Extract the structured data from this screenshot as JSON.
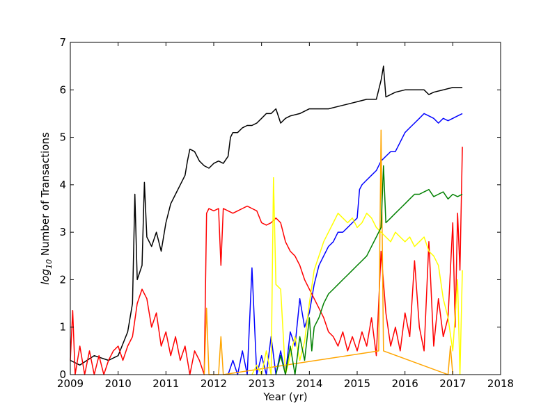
{
  "chart_data": {
    "type": "line",
    "title": "",
    "xlabel": "Year (yr)",
    "ylabel_prefix": "log",
    "ylabel_sub": "10",
    "ylabel_rest": " Number of Transactions",
    "xlim": [
      2009,
      2018
    ],
    "ylim": [
      0,
      7
    ],
    "x_ticks": [
      "2009",
      "2010",
      "2011",
      "2012",
      "2013",
      "2014",
      "2015",
      "2016",
      "2017",
      "2018"
    ],
    "y_ticks": [
      "0",
      "1",
      "2",
      "3",
      "4",
      "5",
      "6",
      "7"
    ],
    "grid": false,
    "legend": "none",
    "series": [
      {
        "color": "#000000",
        "x": [
          2009.0,
          2009.2,
          2009.5,
          2009.8,
          2010.0,
          2010.2,
          2010.3,
          2010.35,
          2010.4,
          2010.5,
          2010.55,
          2010.6,
          2010.7,
          2010.8,
          2010.9,
          2011.0,
          2011.1,
          2011.2,
          2011.3,
          2011.4,
          2011.45,
          2011.5,
          2011.6,
          2011.7,
          2011.8,
          2011.9,
          2012.0,
          2012.1,
          2012.2,
          2012.3,
          2012.35,
          2012.4,
          2012.5,
          2012.6,
          2012.7,
          2012.8,
          2012.9,
          2013.0,
          2013.1,
          2013.2,
          2013.3,
          2013.4,
          2013.5,
          2013.6,
          2013.8,
          2014.0,
          2014.2,
          2014.4,
          2014.6,
          2014.8,
          2015.0,
          2015.2,
          2015.4,
          2015.5,
          2015.55,
          2015.6,
          2015.7,
          2015.8,
          2016.0,
          2016.2,
          2016.4,
          2016.5,
          2016.6,
          2016.8,
          2017.0,
          2017.1,
          2017.2
        ],
        "y": [
          0.3,
          0.2,
          0.4,
          0.3,
          0.4,
          0.9,
          1.5,
          3.8,
          2.0,
          2.3,
          4.05,
          2.9,
          2.7,
          3.0,
          2.6,
          3.2,
          3.6,
          3.8,
          4.0,
          4.2,
          4.5,
          4.75,
          4.7,
          4.5,
          4.4,
          4.35,
          4.45,
          4.5,
          4.45,
          4.6,
          5.0,
          5.1,
          5.1,
          5.2,
          5.25,
          5.25,
          5.3,
          5.4,
          5.5,
          5.5,
          5.6,
          5.3,
          5.4,
          5.45,
          5.5,
          5.6,
          5.6,
          5.6,
          5.65,
          5.7,
          5.75,
          5.8,
          5.8,
          6.2,
          6.5,
          5.85,
          5.9,
          5.95,
          6.0,
          6.0,
          6.0,
          5.9,
          5.95,
          6.0,
          6.05,
          6.05,
          6.05
        ]
      },
      {
        "color": "#0000ff",
        "x": [
          2012.3,
          2012.4,
          2012.5,
          2012.6,
          2012.7,
          2012.8,
          2012.9,
          2013.0,
          2013.1,
          2013.2,
          2013.3,
          2013.4,
          2013.5,
          2013.6,
          2013.7,
          2013.8,
          2013.9,
          2014.0,
          2014.1,
          2014.2,
          2014.3,
          2014.4,
          2014.5,
          2014.6,
          2014.7,
          2014.8,
          2014.9,
          2015.0,
          2015.05,
          2015.1,
          2015.2,
          2015.3,
          2015.4,
          2015.5,
          2015.6,
          2015.7,
          2015.8,
          2015.9,
          2016.0,
          2016.1,
          2016.2,
          2016.3,
          2016.4,
          2016.5,
          2016.6,
          2016.7,
          2016.8,
          2016.9,
          2017.0,
          2017.1,
          2017.2
        ],
        "y": [
          0.0,
          0.3,
          0.0,
          0.5,
          0.0,
          2.25,
          0.0,
          0.4,
          0.0,
          0.8,
          0.0,
          0.5,
          0.0,
          0.9,
          0.6,
          1.6,
          1.0,
          1.3,
          1.9,
          2.3,
          2.5,
          2.7,
          2.8,
          3.0,
          3.0,
          3.1,
          3.2,
          3.3,
          3.9,
          4.0,
          4.1,
          4.2,
          4.3,
          4.5,
          4.6,
          4.7,
          4.7,
          4.9,
          5.1,
          5.2,
          5.3,
          5.4,
          5.5,
          5.45,
          5.4,
          5.3,
          5.4,
          5.35,
          5.4,
          5.45,
          5.5
        ]
      },
      {
        "color": "#ff0000",
        "x": [
          2009.0,
          2009.05,
          2009.1,
          2009.2,
          2009.3,
          2009.4,
          2009.5,
          2009.6,
          2009.7,
          2009.8,
          2009.9,
          2010.0,
          2010.1,
          2010.2,
          2010.3,
          2010.4,
          2010.5,
          2010.6,
          2010.7,
          2010.8,
          2010.9,
          2011.0,
          2011.1,
          2011.2,
          2011.3,
          2011.4,
          2011.5,
          2011.6,
          2011.7,
          2011.8,
          2011.85,
          2011.9,
          2012.0,
          2012.1,
          2012.15,
          2012.2,
          2012.3,
          2012.4,
          2012.5,
          2012.6,
          2012.7,
          2012.8,
          2012.9,
          2013.0,
          2013.1,
          2013.2,
          2013.3,
          2013.4,
          2013.5,
          2013.6,
          2013.7,
          2013.8,
          2013.9,
          2014.0,
          2014.1,
          2014.2,
          2014.3,
          2014.4,
          2014.5,
          2014.6,
          2014.7,
          2014.8,
          2014.9,
          2015.0,
          2015.1,
          2015.2,
          2015.3,
          2015.4,
          2015.5,
          2015.6,
          2015.7,
          2015.8,
          2015.9,
          2016.0,
          2016.1,
          2016.2,
          2016.3,
          2016.4,
          2016.5,
          2016.6,
          2016.7,
          2016.8,
          2016.9,
          2017.0,
          2017.05,
          2017.1,
          2017.15,
          2017.2
        ],
        "y": [
          0.3,
          1.35,
          0.0,
          0.6,
          0.0,
          0.5,
          0.0,
          0.4,
          0.0,
          0.3,
          0.5,
          0.6,
          0.3,
          0.6,
          0.8,
          1.5,
          1.8,
          1.6,
          1.0,
          1.3,
          0.6,
          0.9,
          0.4,
          0.8,
          0.3,
          0.6,
          0.0,
          0.5,
          0.3,
          0.0,
          3.4,
          3.5,
          3.45,
          3.5,
          2.3,
          3.5,
          3.45,
          3.4,
          3.45,
          3.5,
          3.55,
          3.5,
          3.45,
          3.2,
          3.15,
          3.2,
          3.3,
          3.2,
          2.8,
          2.6,
          2.5,
          2.3,
          2.0,
          1.8,
          1.6,
          1.4,
          1.2,
          0.9,
          0.8,
          0.6,
          0.9,
          0.5,
          0.8,
          0.5,
          0.9,
          0.6,
          1.2,
          0.4,
          2.6,
          1.3,
          0.6,
          1.0,
          0.5,
          1.3,
          0.8,
          2.4,
          1.0,
          0.5,
          2.8,
          0.6,
          1.6,
          0.8,
          1.2,
          3.2,
          1.0,
          3.4,
          2.2,
          4.8
        ]
      },
      {
        "color": "#ffa500",
        "x": [
          2011.8,
          2011.85,
          2011.9,
          2012.1,
          2012.15,
          2012.2,
          2015.45,
          2015.5,
          2015.55,
          2016.9,
          2016.95,
          2017.0
        ],
        "y": [
          0.0,
          1.4,
          0.0,
          0.0,
          0.8,
          0.0,
          0.5,
          5.15,
          0.5,
          0.0,
          0.6,
          0.0
        ]
      },
      {
        "color": "#ffff00",
        "x": [
          2012.8,
          2012.9,
          2013.0,
          2013.1,
          2013.2,
          2013.25,
          2013.3,
          2013.4,
          2013.5,
          2013.6,
          2013.7,
          2013.8,
          2013.9,
          2014.0,
          2014.1,
          2014.2,
          2014.3,
          2014.4,
          2014.5,
          2014.6,
          2014.7,
          2014.8,
          2014.9,
          2015.0,
          2015.1,
          2015.2,
          2015.3,
          2015.4,
          2015.5,
          2015.6,
          2015.7,
          2015.8,
          2015.9,
          2016.0,
          2016.1,
          2016.2,
          2016.3,
          2016.4,
          2016.5,
          2016.6,
          2016.7,
          2016.8,
          2016.9,
          2017.0,
          2017.1,
          2017.15,
          2017.2
        ],
        "y": [
          0.0,
          0.2,
          0.0,
          0.5,
          0.0,
          4.15,
          1.9,
          1.8,
          0.0,
          0.4,
          0.8,
          0.3,
          0.7,
          1.5,
          2.2,
          2.5,
          2.8,
          3.0,
          3.2,
          3.4,
          3.3,
          3.2,
          3.3,
          3.1,
          3.2,
          3.4,
          3.3,
          3.1,
          3.0,
          2.9,
          2.8,
          3.0,
          2.9,
          2.8,
          2.9,
          2.7,
          2.8,
          2.9,
          2.6,
          2.5,
          2.3,
          1.6,
          1.2,
          0.5,
          2.0,
          0.0,
          2.2
        ]
      },
      {
        "color": "#008000",
        "x": [
          2013.3,
          2013.4,
          2013.5,
          2013.6,
          2013.7,
          2013.8,
          2013.9,
          2014.0,
          2014.05,
          2014.1,
          2014.2,
          2014.3,
          2014.4,
          2014.5,
          2014.6,
          2014.7,
          2014.8,
          2014.9,
          2015.0,
          2015.1,
          2015.2,
          2015.3,
          2015.4,
          2015.5,
          2015.55,
          2015.6,
          2015.7,
          2015.8,
          2015.9,
          2016.0,
          2016.1,
          2016.2,
          2016.3,
          2016.4,
          2016.5,
          2016.6,
          2016.7,
          2016.8,
          2016.9,
          2017.0,
          2017.1,
          2017.2
        ],
        "y": [
          0.0,
          0.4,
          0.0,
          0.6,
          0.0,
          0.8,
          0.3,
          1.2,
          0.5,
          1.0,
          1.2,
          1.5,
          1.7,
          1.8,
          1.9,
          2.0,
          2.1,
          2.2,
          2.3,
          2.4,
          2.5,
          2.7,
          2.9,
          3.1,
          4.4,
          3.2,
          3.3,
          3.4,
          3.5,
          3.6,
          3.7,
          3.8,
          3.8,
          3.85,
          3.9,
          3.75,
          3.8,
          3.85,
          3.7,
          3.8,
          3.75,
          3.8
        ]
      }
    ]
  }
}
